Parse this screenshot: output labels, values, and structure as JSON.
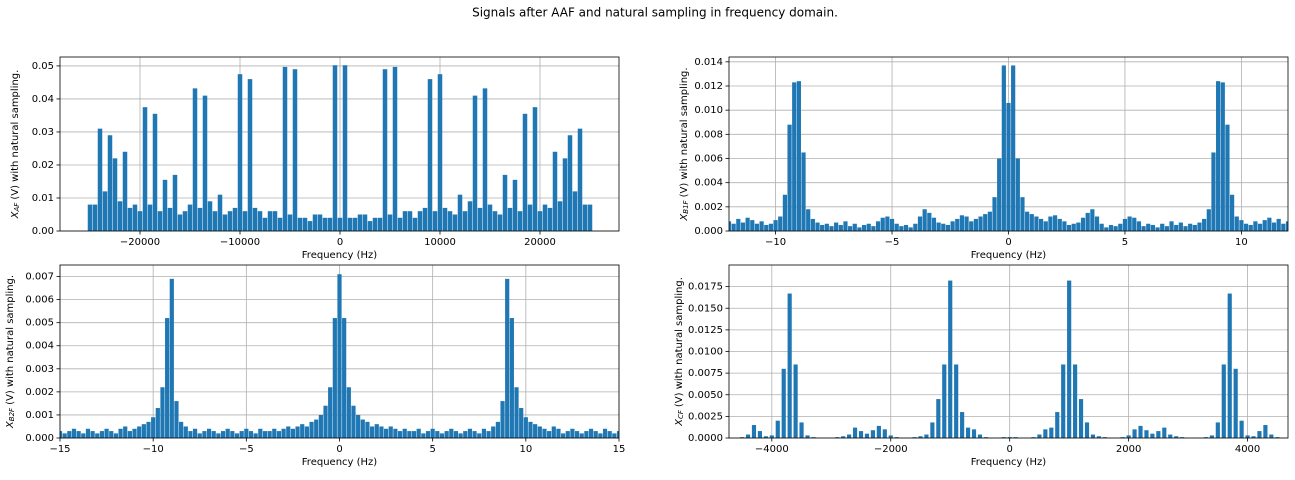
{
  "title": "Signals after AAF and natural sampling in frequency domain.",
  "chart_data": [
    {
      "type": "bar",
      "color": "#1f77b4",
      "grid": true,
      "xlabel": "Frequency (Hz)",
      "ylabel": {
        "symbol": "X",
        "subscript": "AF",
        "text": "(V) with natural sampling."
      },
      "xlim": [
        -28000,
        27900
      ],
      "ylim": [
        0,
        0.0527
      ],
      "xticks": [
        {
          "value": -20000,
          "label": "−20000"
        },
        {
          "value": -10000,
          "label": "−10000"
        },
        0,
        10000,
        20000
      ],
      "yticks": [
        {
          "value": 0,
          "label": "0.00"
        },
        {
          "value": 0.01,
          "label": "0.01"
        },
        {
          "value": 0.02,
          "label": "0.02"
        },
        {
          "value": 0.03,
          "label": "0.03"
        },
        {
          "value": 0.04,
          "label": "0.04"
        },
        {
          "value": 0.05,
          "label": "0.05"
        }
      ],
      "x": [
        -25000,
        -24500,
        -24000,
        -23500,
        -23000,
        -22500,
        -22000,
        -21500,
        -21000,
        -20500,
        -20000,
        -19500,
        -19000,
        -18500,
        -18000,
        -17500,
        -17000,
        -16500,
        -16000,
        -15500,
        -15000,
        -14500,
        -14000,
        -13500,
        -13000,
        -12500,
        -12000,
        -11500,
        -11000,
        -10500,
        -10000,
        -9500,
        -9000,
        -8500,
        -8000,
        -7500,
        -7000,
        -6500,
        -6000,
        -5500,
        -5000,
        -4500,
        -4000,
        -3500,
        -3000,
        -2500,
        -2000,
        -1500,
        -1000,
        -500,
        0,
        500,
        1000,
        1500,
        2000,
        2500,
        3000,
        3500,
        4000,
        4500,
        5000,
        5500,
        6000,
        6500,
        7000,
        7500,
        8000,
        8500,
        9000,
        9500,
        10000,
        10500,
        11000,
        11500,
        12000,
        12500,
        13000,
        13500,
        14000,
        14500,
        15000,
        15500,
        16000,
        16500,
        17000,
        17500,
        18000,
        18500,
        19000,
        19500,
        20000,
        20500,
        21000,
        21500,
        22000,
        22500,
        23000,
        23500,
        24000,
        24500,
        25000
      ],
      "values": [
        0.008,
        0.008,
        0.031,
        0.012,
        0.029,
        0.022,
        0.009,
        0.024,
        0.007,
        0.008,
        0.006,
        0.0375,
        0.008,
        0.0355,
        0.006,
        0.0155,
        0.007,
        0.017,
        0.005,
        0.006,
        0.008,
        0.0432,
        0.007,
        0.041,
        0.009,
        0.006,
        0.011,
        0.005,
        0.006,
        0.007,
        0.0475,
        0.006,
        0.046,
        0.007,
        0.006,
        0.004,
        0.006,
        0.006,
        0.004,
        0.0497,
        0.005,
        0.049,
        0.004,
        0.004,
        0.003,
        0.005,
        0.005,
        0.004,
        0.004,
        0.0502,
        0.004,
        0.0502,
        0.004,
        0.004,
        0.005,
        0.005,
        0.003,
        0.004,
        0.004,
        0.049,
        0.005,
        0.0497,
        0.004,
        0.006,
        0.006,
        0.004,
        0.006,
        0.007,
        0.046,
        0.006,
        0.0475,
        0.007,
        0.006,
        0.005,
        0.011,
        0.006,
        0.009,
        0.041,
        0.007,
        0.0432,
        0.008,
        0.006,
        0.005,
        0.017,
        0.007,
        0.0155,
        0.006,
        0.0355,
        0.008,
        0.0375,
        0.006,
        0.008,
        0.007,
        0.024,
        0.009,
        0.022,
        0.029,
        0.012,
        0.031,
        0.008,
        0.008
      ]
    },
    {
      "type": "bar",
      "color": "#1f77b4",
      "grid": true,
      "xlabel": "Frequency (Hz)",
      "ylabel": {
        "symbol": "X",
        "subscript": "B1F",
        "text": "(V) with natural sampling."
      },
      "xlim": [
        -12,
        12
      ],
      "ylim": [
        0,
        0.0144
      ],
      "xticks": [
        {
          "value": -10,
          "label": "−10"
        },
        {
          "value": -5,
          "label": "−5"
        },
        0,
        5,
        10
      ],
      "yticks": [
        {
          "value": 0,
          "label": "0.000"
        },
        0.002,
        0.004,
        0.006,
        0.008,
        {
          "value": 0.01,
          "label": "0.010"
        },
        0.012,
        0.014
      ],
      "x": [
        -12,
        -11.8,
        -11.6,
        -11.4,
        -11.2,
        -11,
        -10.8,
        -10.6,
        -10.4,
        -10.2,
        -10,
        -9.8,
        -9.6,
        -9.4,
        -9.2,
        -9,
        -8.8,
        -8.6,
        -8.4,
        -8.2,
        -8,
        -7.8,
        -7.6,
        -7.4,
        -7.2,
        -7,
        -6.8,
        -6.6,
        -6.4,
        -6.2,
        -6,
        -5.8,
        -5.6,
        -5.4,
        -5.2,
        -5,
        -4.8,
        -4.6,
        -4.4,
        -4.2,
        -4,
        -3.8,
        -3.6,
        -3.4,
        -3.2,
        -3,
        -2.8,
        -2.6,
        -2.4,
        -2.2,
        -2,
        -1.8,
        -1.6,
        -1.4,
        -1.2,
        -1,
        -0.8,
        -0.6,
        -0.4,
        -0.2,
        0,
        0.2,
        0.4,
        0.6,
        0.8,
        1,
        1.2,
        1.4,
        1.6,
        1.8,
        2,
        2.2,
        2.4,
        2.6,
        2.8,
        3,
        3.2,
        3.4,
        3.6,
        3.8,
        4,
        4.2,
        4.4,
        4.6,
        4.8,
        5,
        5.2,
        5.4,
        5.6,
        5.8,
        6,
        6.2,
        6.4,
        6.6,
        6.8,
        7,
        7.2,
        7.4,
        7.6,
        7.8,
        8,
        8.2,
        8.4,
        8.6,
        8.8,
        9,
        9.2,
        9.4,
        9.6,
        9.8,
        10,
        10.2,
        10.4,
        10.6,
        10.8,
        11,
        11.2,
        11.4,
        11.6,
        11.8,
        12
      ],
      "values": [
        0.0008,
        0.0006,
        0.001,
        0.0007,
        0.0011,
        0.0009,
        0.0006,
        0.0008,
        0.0005,
        0.0006,
        0.0009,
        0.0012,
        0.003,
        0.0088,
        0.0123,
        0.0124,
        0.0065,
        0.0018,
        0.001,
        0.0007,
        0.0005,
        0.0006,
        0.0004,
        0.0007,
        0.0005,
        0.0008,
        0.0004,
        0.0006,
        0.0003,
        0.0005,
        0.0006,
        0.0004,
        0.0008,
        0.0011,
        0.0012,
        0.001,
        0.0006,
        0.0004,
        0.0005,
        0.0003,
        0.0006,
        0.0012,
        0.0018,
        0.0015,
        0.0011,
        0.0007,
        0.0006,
        0.0005,
        0.0008,
        0.001,
        0.0013,
        0.0012,
        0.0008,
        0.001,
        0.0012,
        0.0014,
        0.0016,
        0.0028,
        0.006,
        0.0137,
        0.0106,
        0.0137,
        0.006,
        0.0028,
        0.0016,
        0.0014,
        0.0012,
        0.001,
        0.0008,
        0.0012,
        0.0013,
        0.001,
        0.0008,
        0.0005,
        0.0006,
        0.0007,
        0.0011,
        0.0015,
        0.0018,
        0.0012,
        0.0006,
        0.0003,
        0.0005,
        0.0004,
        0.0006,
        0.001,
        0.0012,
        0.0011,
        0.0008,
        0.0004,
        0.0006,
        0.0005,
        0.0003,
        0.0006,
        0.0004,
        0.0008,
        0.0005,
        0.0007,
        0.0004,
        0.0006,
        0.0005,
        0.0007,
        0.001,
        0.0018,
        0.0065,
        0.0124,
        0.0123,
        0.0088,
        0.003,
        0.0012,
        0.0009,
        0.0006,
        0.0005,
        0.0008,
        0.0006,
        0.0009,
        0.0011,
        0.0007,
        0.001,
        0.0006,
        0.0008
      ]
    },
    {
      "type": "bar",
      "color": "#1f77b4",
      "grid": true,
      "xlabel": "Frequency (Hz)",
      "ylabel": {
        "symbol": "X",
        "subscript": "B2F",
        "text": "(V) with natural sampling."
      },
      "xlim": [
        -15,
        15
      ],
      "ylim": [
        0,
        0.0075
      ],
      "xticks": [
        {
          "value": -15,
          "label": "−15"
        },
        {
          "value": -10,
          "label": "−10"
        },
        {
          "value": -5,
          "label": "−5"
        },
        0,
        5,
        10,
        15
      ],
      "yticks": [
        {
          "value": 0,
          "label": "0.000"
        },
        0.001,
        0.002,
        0.003,
        0.004,
        0.005,
        0.006,
        0.007
      ],
      "x": [
        -15,
        -14.75,
        -14.5,
        -14.25,
        -14,
        -13.75,
        -13.5,
        -13.25,
        -13,
        -12.75,
        -12.5,
        -12.25,
        -12,
        -11.75,
        -11.5,
        -11.25,
        -11,
        -10.75,
        -10.5,
        -10.25,
        -10,
        -9.75,
        -9.5,
        -9.25,
        -9,
        -8.75,
        -8.5,
        -8.25,
        -8,
        -7.75,
        -7.5,
        -7.25,
        -7,
        -6.75,
        -6.5,
        -6.25,
        -6,
        -5.75,
        -5.5,
        -5.25,
        -5,
        -4.75,
        -4.5,
        -4.25,
        -4,
        -3.75,
        -3.5,
        -3.25,
        -3,
        -2.75,
        -2.5,
        -2.25,
        -2,
        -1.75,
        -1.5,
        -1.25,
        -1,
        -0.75,
        -0.5,
        -0.25,
        0,
        0.25,
        0.5,
        0.75,
        1,
        1.25,
        1.5,
        1.75,
        2,
        2.25,
        2.5,
        2.75,
        3,
        3.25,
        3.5,
        3.75,
        4,
        4.25,
        4.5,
        4.75,
        5,
        5.25,
        5.5,
        5.75,
        6,
        6.25,
        6.5,
        6.75,
        7,
        7.25,
        7.5,
        7.75,
        8,
        8.25,
        8.5,
        8.75,
        9,
        9.25,
        9.5,
        9.75,
        10,
        10.25,
        10.5,
        10.75,
        11,
        11.25,
        11.5,
        11.75,
        12,
        12.25,
        12.5,
        12.75,
        13,
        13.25,
        13.5,
        13.75,
        14,
        14.25,
        14.5,
        14.75,
        15
      ],
      "values": [
        0.0003,
        0.0002,
        0.0003,
        0.0004,
        0.0003,
        0.0002,
        0.0004,
        0.0003,
        0.0002,
        0.0003,
        0.0004,
        0.0003,
        0.0002,
        0.0004,
        0.0005,
        0.0003,
        0.0004,
        0.0005,
        0.0006,
        0.0007,
        0.0009,
        0.0013,
        0.0022,
        0.0052,
        0.0069,
        0.0016,
        0.0007,
        0.0005,
        0.0003,
        0.0004,
        0.0002,
        0.0003,
        0.0004,
        0.0003,
        0.0002,
        0.0003,
        0.0004,
        0.0003,
        0.0002,
        0.0003,
        0.0004,
        0.0003,
        0.0002,
        0.0004,
        0.0003,
        0.0003,
        0.0004,
        0.0003,
        0.0004,
        0.0005,
        0.0004,
        0.0005,
        0.0006,
        0.0005,
        0.0007,
        0.0008,
        0.001,
        0.0014,
        0.0022,
        0.0052,
        0.0071,
        0.0052,
        0.0022,
        0.0014,
        0.001,
        0.0008,
        0.0007,
        0.0005,
        0.0006,
        0.0005,
        0.0004,
        0.0005,
        0.0004,
        0.0003,
        0.0004,
        0.0003,
        0.0003,
        0.0004,
        0.0002,
        0.0003,
        0.0004,
        0.0003,
        0.0002,
        0.0003,
        0.0004,
        0.0003,
        0.0002,
        0.0003,
        0.0004,
        0.0003,
        0.0002,
        0.0004,
        0.0003,
        0.0005,
        0.0007,
        0.0016,
        0.0069,
        0.0052,
        0.0022,
        0.0013,
        0.0009,
        0.0007,
        0.0006,
        0.0005,
        0.0004,
        0.0003,
        0.0005,
        0.0004,
        0.0002,
        0.0003,
        0.0004,
        0.0003,
        0.0002,
        0.0003,
        0.0004,
        0.0003,
        0.0002,
        0.0004,
        0.0003,
        0.0002,
        0.0003
      ]
    },
    {
      "type": "bar",
      "color": "#1f77b4",
      "grid": true,
      "xlabel": "Frequency (Hz)",
      "ylabel": {
        "symbol": "X",
        "subscript": "CF",
        "text": "(V) with natural sampling."
      },
      "xlim": [
        -4720,
        4680
      ],
      "ylim": [
        0,
        0.02
      ],
      "xticks": [
        {
          "value": -4000,
          "label": "−4000"
        },
        {
          "value": -2000,
          "label": "−2000"
        },
        0,
        2000,
        4000
      ],
      "yticks": [
        {
          "value": 0,
          "label": "0.0000"
        },
        0.0025,
        {
          "value": 0.005,
          "label": "0.0050"
        },
        0.0075,
        {
          "value": 0.01,
          "label": "0.0100"
        },
        0.0125,
        {
          "value": 0.015,
          "label": "0.0150"
        },
        0.0175
      ],
      "x": [
        -4600,
        -4500,
        -4400,
        -4300,
        -4200,
        -4100,
        -4000,
        -3900,
        -3800,
        -3700,
        -3600,
        -3500,
        -3400,
        -3300,
        -3200,
        -3100,
        -3000,
        -2900,
        -2800,
        -2700,
        -2600,
        -2500,
        -2400,
        -2300,
        -2200,
        -2100,
        -2000,
        -1900,
        -1800,
        -1700,
        -1600,
        -1500,
        -1400,
        -1300,
        -1200,
        -1100,
        -1000,
        -900,
        -800,
        -700,
        -600,
        -500,
        -400,
        -300,
        -200,
        -100,
        0,
        100,
        200,
        300,
        400,
        500,
        600,
        700,
        800,
        900,
        1000,
        1100,
        1200,
        1300,
        1400,
        1500,
        1600,
        1700,
        1800,
        1900,
        2000,
        2100,
        2200,
        2300,
        2400,
        2500,
        2600,
        2700,
        2800,
        2900,
        3000,
        3100,
        3200,
        3300,
        3400,
        3500,
        3600,
        3700,
        3800,
        3900,
        4000,
        4100,
        4200,
        4300,
        4400,
        4500,
        4600
      ],
      "values": [
        0,
        0.0001,
        0.0004,
        0.0015,
        0.0008,
        0.0002,
        0.0003,
        0.002,
        0.008,
        0.0167,
        0.0085,
        0.0018,
        0.0003,
        0.0001,
        0,
        0,
        0,
        0.0001,
        0.0002,
        0.0004,
        0.0012,
        0.0008,
        0.0005,
        0.0009,
        0.0014,
        0.001,
        0.0003,
        0.0001,
        0,
        0,
        0.0001,
        0.0002,
        0.0004,
        0.0018,
        0.0045,
        0.0085,
        0.0182,
        0.0085,
        0.003,
        0.0012,
        0.001,
        0.0004,
        0.0001,
        0,
        0,
        0.0001,
        0.0001,
        0.0001,
        0,
        0,
        0.0001,
        0.0004,
        0.001,
        0.0012,
        0.003,
        0.0085,
        0.0182,
        0.0085,
        0.0045,
        0.0018,
        0.0004,
        0.0002,
        0.0001,
        0,
        0,
        0.0001,
        0.0003,
        0.001,
        0.0014,
        0.0009,
        0.0005,
        0.0008,
        0.0012,
        0.0004,
        0.0002,
        0.0001,
        0,
        0,
        0,
        0.0001,
        0.0003,
        0.0018,
        0.0085,
        0.0167,
        0.008,
        0.002,
        0.0003,
        0.0002,
        0.0008,
        0.0015,
        0.0004,
        0.0001,
        0
      ]
    }
  ]
}
